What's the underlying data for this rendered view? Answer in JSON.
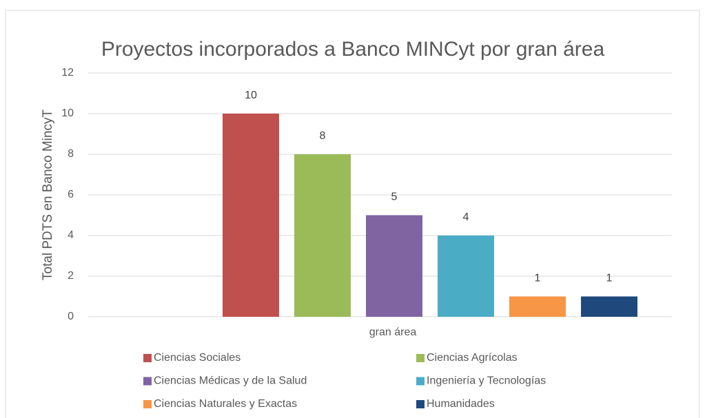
{
  "chart_data": {
    "type": "bar",
    "title": "Proyectos incorporados a Banco MINCyt por gran área",
    "y_label": "Total PDTS en Banco MincyT",
    "categories": [
      "gran área"
    ],
    "series": [
      {
        "name": "Ciencias Sociales",
        "color": "#c0504d",
        "values": [
          10
        ]
      },
      {
        "name": "Ciencias Agrícolas",
        "color": "#9bbb59",
        "values": [
          8
        ]
      },
      {
        "name": "Ciencias Médicas y de la Salud",
        "color": "#8064a2",
        "values": [
          5
        ]
      },
      {
        "name": "Ingeniería y Tecnologías",
        "color": "#4bacc6",
        "values": [
          4
        ]
      },
      {
        "name": "Ciencias Naturales y Exactas",
        "color": "#f79646",
        "values": [
          1
        ]
      },
      {
        "name": "Humanidades",
        "color": "#1f497d",
        "values": [
          1
        ]
      }
    ],
    "ylim": [
      0,
      12
    ],
    "yticks": [
      0,
      2,
      4,
      6,
      8,
      10,
      12
    ],
    "grid": true,
    "legend": "bottom"
  }
}
